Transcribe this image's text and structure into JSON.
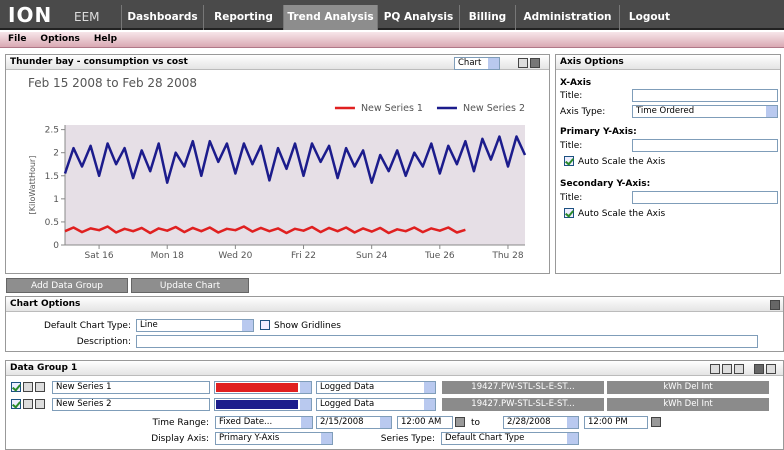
{
  "nav": {
    "logo": "ION",
    "product": "EEM",
    "tabs": [
      "Dashboards",
      "Reporting",
      "Trend Analysis",
      "PQ Analysis",
      "Billing",
      "Administration",
      "Logout"
    ],
    "active": "Trend Analysis"
  },
  "menu": [
    "File",
    "Options",
    "Help"
  ],
  "chart_panel": {
    "title": "Thunder bay - consumption vs cost",
    "view": "Chart"
  },
  "chart_data": {
    "type": "line",
    "title": "Feb 15 2008 to Feb 28 2008",
    "y_label": "[KiloWattHour]",
    "categories": [
      null,
      null,
      null,
      null,
      "Sat 16",
      null,
      null,
      null,
      null,
      null,
      null,
      null,
      "Mon 18",
      null,
      null,
      null,
      null,
      null,
      null,
      null,
      "Wed 20",
      null,
      null,
      null,
      null,
      null,
      null,
      null,
      "Fri 22",
      null,
      null,
      null,
      null,
      null,
      null,
      null,
      "Sun 24",
      null,
      null,
      null,
      null,
      null,
      null,
      null,
      "Tue 26",
      null,
      null,
      null,
      null,
      null,
      null,
      null,
      "Thu 28",
      null,
      null
    ],
    "series": [
      {
        "name": "New Series 1",
        "color": "#e02020",
        "values": [
          0.3,
          0.38,
          0.28,
          0.36,
          0.32,
          0.4,
          0.27,
          0.35,
          0.3,
          0.37,
          0.26,
          0.36,
          0.31,
          0.39,
          0.28,
          0.37,
          0.3,
          0.38,
          0.27,
          0.35,
          0.32,
          0.4,
          0.29,
          0.37,
          0.3,
          0.36,
          0.26,
          0.35,
          0.31,
          0.39,
          0.28,
          0.37,
          0.3,
          0.38,
          0.27,
          0.36,
          0.29,
          0.37,
          0.26,
          0.34,
          0.3,
          0.38,
          0.28,
          0.36,
          0.31,
          0.38,
          0.27,
          0.33,
          null,
          null,
          null,
          null,
          null,
          null,
          null
        ]
      },
      {
        "name": "New Series 2",
        "color": "#1c1c8c",
        "values": [
          1.55,
          2.1,
          1.7,
          2.15,
          1.5,
          2.2,
          1.75,
          2.1,
          1.45,
          2.05,
          1.6,
          2.2,
          1.35,
          2.0,
          1.7,
          2.25,
          1.5,
          2.25,
          1.8,
          2.2,
          1.55,
          2.2,
          1.75,
          2.15,
          1.4,
          2.1,
          1.65,
          2.2,
          1.5,
          2.2,
          1.8,
          2.15,
          1.45,
          2.1,
          1.7,
          2.05,
          1.35,
          1.95,
          1.6,
          2.05,
          1.5,
          2.0,
          1.7,
          2.2,
          1.55,
          2.15,
          1.75,
          2.25,
          1.6,
          2.3,
          1.85,
          2.35,
          1.7,
          2.35,
          1.95
        ]
      }
    ],
    "ylim": [
      0,
      2.6
    ],
    "yticks": [
      0,
      0.5,
      1,
      1.5,
      2,
      2.5
    ],
    "legend": "top-right",
    "background": "#e6dfe6"
  },
  "axis_options": {
    "title": "Axis Options",
    "x_axis": "X-Axis",
    "title_label": "Title:",
    "axis_type_label": "Axis Type:",
    "axis_type": "Time Ordered",
    "primary": "Primary Y-Axis:",
    "secondary": "Secondary Y-Axis:",
    "auto_scale": "Auto Scale the Axis"
  },
  "buttons": [
    "Add Data Group",
    "Update Chart"
  ],
  "chart_options": {
    "title": "Chart Options",
    "type_label": "Default Chart Type:",
    "type": "Line",
    "gridlines": "Show Gridlines",
    "description_label": "Description:"
  },
  "data_group": {
    "title": "Data Group 1",
    "rows": [
      {
        "name": "New Series 1",
        "source": "Logged Data",
        "measurement_source": "19427.PW-STL-SL-E-ST...",
        "measurement": "kWh Del Int"
      },
      {
        "name": "New Series 2",
        "source": "Logged Data",
        "measurement_source": "19427.PW-STL-SL-E-ST...",
        "measurement": "kWh Del Int"
      }
    ],
    "time_range_label": "Time Range:",
    "time_range": "Fixed Date...",
    "start_date": "2/15/2008",
    "start_time": "12:00 AM",
    "to": "to",
    "end_date": "2/28/2008",
    "end_time": "12:00 PM",
    "display_axis_label": "Display Axis:",
    "display_axis": "Primary Y-Axis",
    "series_type_label": "Series Type:",
    "series_type": "Default Chart Type"
  }
}
